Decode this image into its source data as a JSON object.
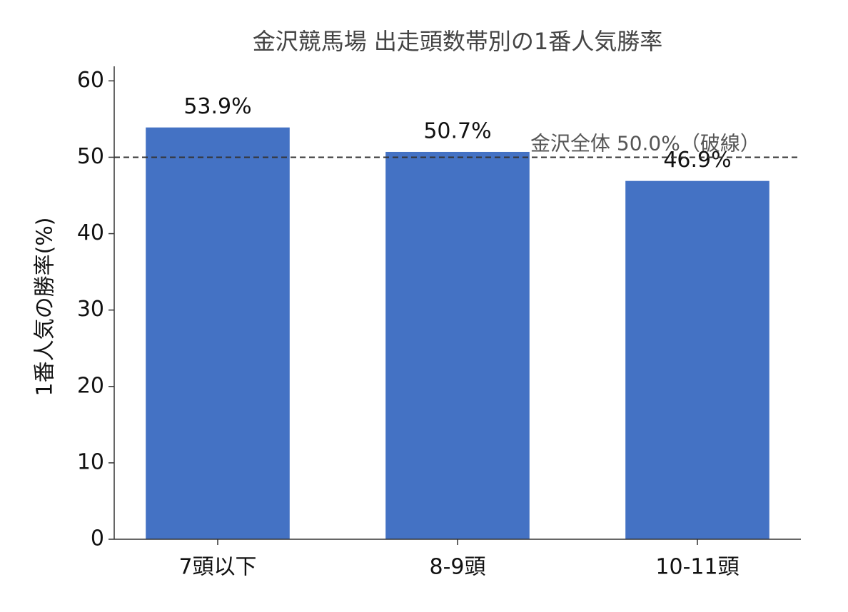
{
  "chart_data": {
    "type": "bar",
    "title": "金沢競馬場 出走頭数帯別の1番人気勝率",
    "ylabel": "1番人気の勝率(%)",
    "categories": [
      "7頭以下",
      "8-9頭",
      "10-11頭"
    ],
    "values": [
      53.9,
      50.7,
      46.9
    ],
    "value_labels": [
      "53.9%",
      "50.7%",
      "46.9%"
    ],
    "color": "#4472c4",
    "ylim": [
      0,
      61.9
    ],
    "yticks": [
      0,
      10,
      20,
      30,
      40,
      50,
      60
    ],
    "reference_line": {
      "value": 50,
      "label": "金沢全体 50.0%（破線）",
      "color": "#333333"
    }
  }
}
